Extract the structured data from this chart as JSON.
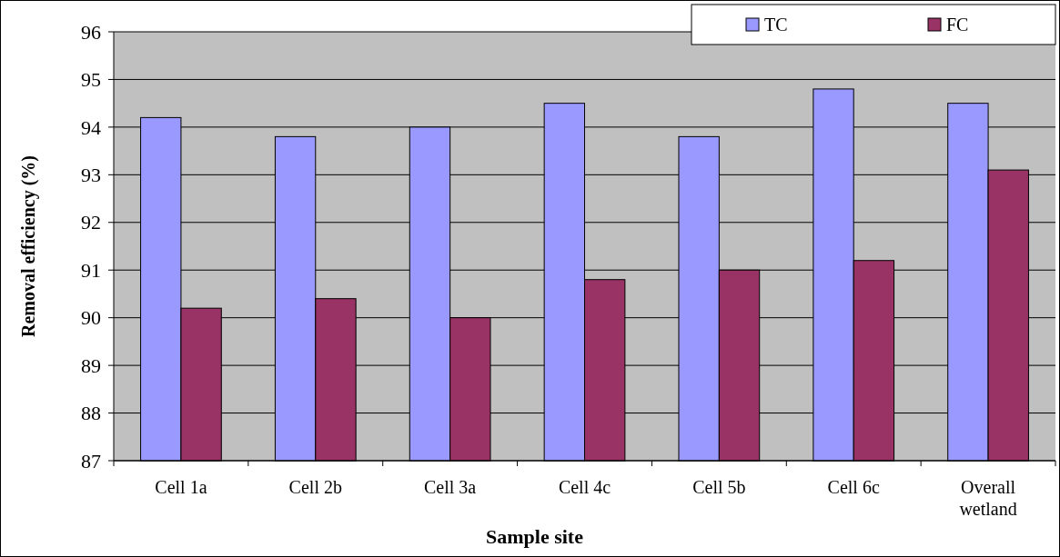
{
  "chart_data": {
    "type": "bar",
    "xlabel": "Sample site",
    "ylabel": "Removal efficiency (%)",
    "categories": [
      "Cell 1a",
      "Cell 2b",
      "Cell 3a",
      "Cell 4c",
      "Cell 5b",
      "Cell 6c",
      "Overall wetland"
    ],
    "series": [
      {
        "name": "TC",
        "color": "#9999ff",
        "values": [
          94.2,
          93.8,
          94.0,
          94.5,
          93.8,
          94.8,
          94.5
        ]
      },
      {
        "name": "FC",
        "color": "#993366",
        "values": [
          90.2,
          90.4,
          90.0,
          90.8,
          91.0,
          91.2,
          93.1
        ]
      }
    ],
    "ylim": [
      87,
      96
    ],
    "yticks": [
      87,
      88,
      89,
      90,
      91,
      92,
      93,
      94,
      95,
      96
    ],
    "grid": "y",
    "legend": "top right"
  }
}
